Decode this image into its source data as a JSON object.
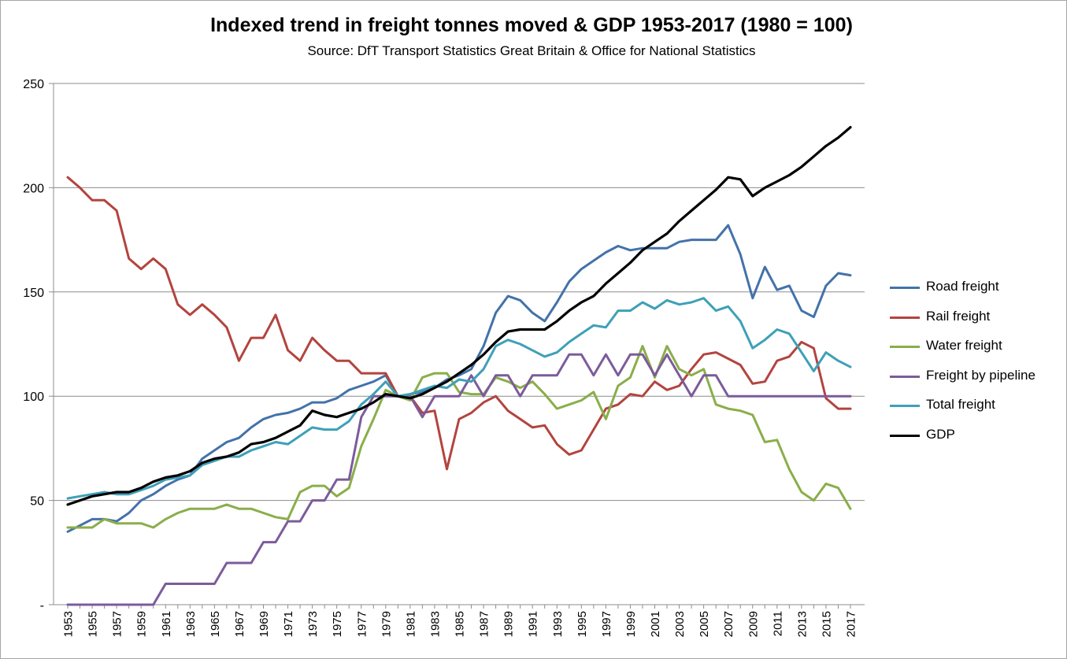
{
  "chart_data": {
    "type": "line",
    "title": "Indexed trend in freight tonnes moved & GDP 1953-2017 (1980 = 100)",
    "subtitle": "Source:  DfT Transport Statistics Great Britain & Office for National Statistics",
    "xlabel": "",
    "ylabel": "",
    "ylim": [
      0,
      250
    ],
    "yticks": [
      0,
      50,
      100,
      150,
      200,
      250
    ],
    "ytick_labels": [
      "-",
      "50",
      "100",
      "150",
      "200",
      "250"
    ],
    "xlim": [
      1953,
      2017
    ],
    "xtick_labels": [
      "1953",
      "1955",
      "1957",
      "1959",
      "1961",
      "1963",
      "1965",
      "1967",
      "1969",
      "1971",
      "1973",
      "1975",
      "1977",
      "1979",
      "1981",
      "1983",
      "1985",
      "1987",
      "1989",
      "1991",
      "1993",
      "1995",
      "1997",
      "1999",
      "2001",
      "2003",
      "2005",
      "2007",
      "2009",
      "2011",
      "2013",
      "2015",
      "2017"
    ],
    "grid": "horizontal",
    "legend_position": "right",
    "x": [
      1953,
      1954,
      1955,
      1956,
      1957,
      1958,
      1959,
      1960,
      1961,
      1962,
      1963,
      1964,
      1965,
      1966,
      1967,
      1968,
      1969,
      1970,
      1971,
      1972,
      1973,
      1974,
      1975,
      1976,
      1977,
      1978,
      1979,
      1980,
      1981,
      1982,
      1983,
      1984,
      1985,
      1986,
      1987,
      1988,
      1989,
      1990,
      1991,
      1992,
      1993,
      1994,
      1995,
      1996,
      1997,
      1998,
      1999,
      2000,
      2001,
      2002,
      2003,
      2004,
      2005,
      2006,
      2007,
      2008,
      2009,
      2010,
      2011,
      2012,
      2013,
      2014,
      2015,
      2016,
      2017
    ],
    "series": [
      {
        "name": "Road freight",
        "color": "#4372aa",
        "values": [
          35,
          38,
          41,
          41,
          40,
          44,
          50,
          53,
          57,
          60,
          62,
          70,
          74,
          78,
          80,
          85,
          89,
          91,
          92,
          94,
          97,
          97,
          99,
          103,
          105,
          107,
          110,
          100,
          101,
          102,
          104,
          108,
          110,
          113,
          124,
          140,
          148,
          146,
          140,
          136,
          145,
          155,
          161,
          165,
          169,
          172,
          170,
          171,
          171,
          171,
          174,
          175,
          175,
          175,
          182,
          168,
          147,
          162,
          151,
          153,
          141,
          138,
          153,
          159,
          158
        ]
      },
      {
        "name": "Rail freight",
        "color": "#b3443f",
        "values": [
          205,
          200,
          194,
          194,
          189,
          166,
          161,
          166,
          161,
          144,
          139,
          144,
          139,
          133,
          117,
          128,
          128,
          139,
          122,
          117,
          128,
          122,
          117,
          117,
          111,
          111,
          111,
          100,
          100,
          92,
          93,
          65,
          89,
          92,
          97,
          100,
          93,
          89,
          85,
          86,
          77,
          72,
          74,
          84,
          94,
          96,
          101,
          100,
          107,
          103,
          105,
          113,
          120,
          121,
          118,
          115,
          106,
          107,
          117,
          119,
          126,
          123,
          99,
          94,
          94
        ]
      },
      {
        "name": "Water freight",
        "color": "#8aae4a",
        "values": [
          37,
          37,
          37,
          41,
          39,
          39,
          39,
          37,
          41,
          44,
          46,
          46,
          46,
          48,
          46,
          46,
          44,
          42,
          41,
          54,
          57,
          57,
          52,
          56,
          76,
          89,
          103,
          100,
          98,
          109,
          111,
          111,
          102,
          101,
          101,
          109,
          107,
          104,
          107,
          101,
          94,
          96,
          98,
          102,
          89,
          105,
          109,
          124,
          109,
          124,
          113,
          110,
          113,
          96,
          94,
          93,
          91,
          78,
          79,
          65,
          54,
          50,
          58,
          56,
          46
        ]
      },
      {
        "name": "Freight by pipeline",
        "color": "#7c5b9b",
        "values": [
          0,
          0,
          0,
          0,
          0,
          0,
          0,
          0,
          10,
          10,
          10,
          10,
          10,
          20,
          20,
          20,
          30,
          30,
          40,
          40,
          50,
          50,
          60,
          60,
          90,
          100,
          100,
          100,
          100,
          90,
          100,
          100,
          100,
          110,
          100,
          110,
          110,
          100,
          110,
          110,
          110,
          120,
          120,
          110,
          120,
          110,
          120,
          120,
          110,
          120,
          110,
          100,
          110,
          110,
          100,
          100,
          100,
          100,
          100,
          100,
          100,
          100,
          100,
          100,
          100
        ]
      },
      {
        "name": "Total freight",
        "color": "#3ea0b8",
        "values": [
          51,
          52,
          53,
          54,
          53,
          53,
          55,
          57,
          60,
          61,
          62,
          67,
          69,
          71,
          71,
          74,
          76,
          78,
          77,
          81,
          85,
          84,
          84,
          88,
          96,
          101,
          107,
          100,
          101,
          103,
          105,
          104,
          108,
          107,
          113,
          124,
          127,
          125,
          122,
          119,
          121,
          126,
          130,
          134,
          133,
          141,
          141,
          145,
          142,
          146,
          144,
          145,
          147,
          141,
          143,
          136,
          123,
          127,
          132,
          130,
          121,
          112,
          121,
          117,
          114
        ]
      },
      {
        "name": "GDP",
        "color": "#000000",
        "values": [
          48,
          50,
          52,
          53,
          54,
          54,
          56,
          59,
          61,
          62,
          64,
          68,
          70,
          71,
          73,
          77,
          78,
          80,
          83,
          86,
          93,
          91,
          90,
          92,
          94,
          97,
          101,
          100,
          99,
          101,
          104,
          107,
          111,
          115,
          120,
          126,
          131,
          132,
          132,
          132,
          136,
          141,
          145,
          148,
          154,
          159,
          164,
          170,
          174,
          178,
          184,
          189,
          194,
          199,
          205,
          204,
          196,
          200,
          203,
          206,
          210,
          215,
          220,
          224,
          229
        ]
      }
    ]
  }
}
